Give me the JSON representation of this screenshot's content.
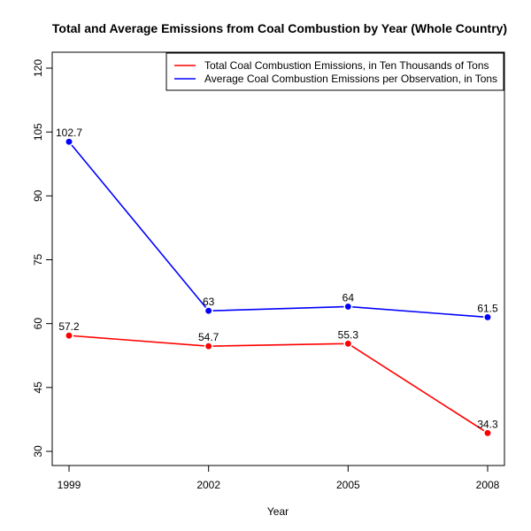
{
  "chart_data": {
    "type": "line",
    "title": "Total and Average Emissions from Coal Combustion by Year (Whole Country)",
    "xlabel": "Year",
    "ylabel": "",
    "x": [
      1999,
      2002,
      2005,
      2008
    ],
    "xticks": [
      "1999",
      "2002",
      "2005",
      "2008"
    ],
    "yticks": [
      30,
      45,
      60,
      75,
      90,
      105,
      120
    ],
    "ylim": [
      30,
      120
    ],
    "grid": false,
    "legend_position": "top-right",
    "series": [
      {
        "name": "Total Coal Combustion Emissions, in Ten Thousands of Tons",
        "color": "#ff0000",
        "values": [
          57.2,
          54.7,
          55.3,
          34.3
        ],
        "labels": [
          "57.2",
          "54.7",
          "55.3",
          "34.3"
        ]
      },
      {
        "name": "Average Coal Combustion Emissions per Observation, in Tons",
        "color": "#0000ff",
        "values": [
          102.7,
          63,
          64,
          61.5
        ],
        "labels": [
          "102.7",
          "63",
          "64",
          "61.5"
        ]
      }
    ]
  }
}
